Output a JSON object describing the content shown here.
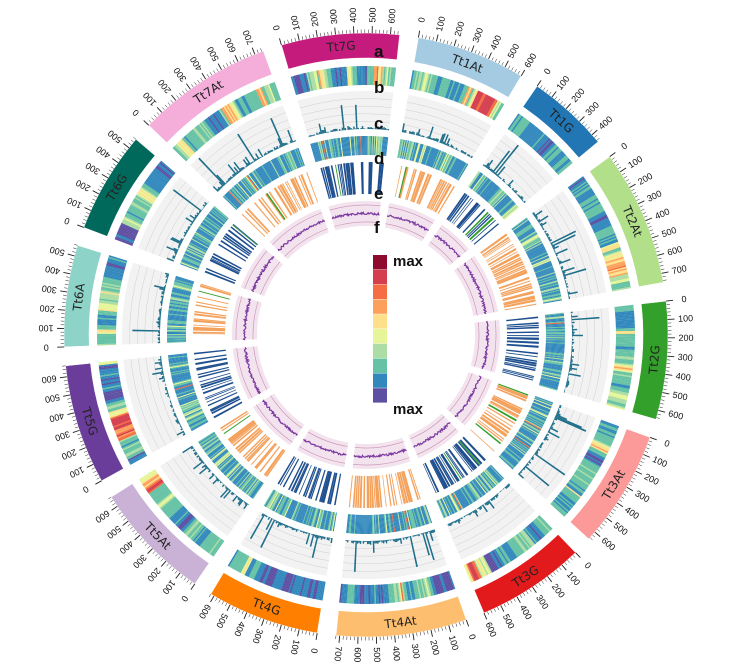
{
  "chart_data": {
    "type": "circos",
    "title": "",
    "start_angle_deg": 10,
    "gap_deg": 3.6,
    "chromosomes": [
      {
        "name": "Tt1At",
        "length": 600,
        "color": "#a5cbe3",
        "ticks": [
          0,
          100,
          200,
          300,
          400,
          500,
          600
        ]
      },
      {
        "name": "Tt1G",
        "length": 450,
        "color": "#2276b4",
        "ticks": [
          0,
          100,
          200,
          300,
          400
        ]
      },
      {
        "name": "Tt2At",
        "length": 750,
        "color": "#b2df8a",
        "ticks": [
          0,
          100,
          200,
          300,
          400,
          500,
          600,
          700
        ]
      },
      {
        "name": "Tt2G",
        "length": 650,
        "color": "#33a02c",
        "ticks": [
          0,
          100,
          200,
          300,
          400,
          500,
          600
        ]
      },
      {
        "name": "Tt3At",
        "length": 650,
        "color": "#fb9a99",
        "ticks": [
          0,
          100,
          200,
          300,
          400,
          500,
          600
        ]
      },
      {
        "name": "Tt3G",
        "length": 600,
        "color": "#e31a1c",
        "ticks": [
          0,
          100,
          200,
          300,
          400,
          500,
          600
        ]
      },
      {
        "name": "Tt4At",
        "length": 720,
        "color": "#fdbf6f",
        "ticks": [
          0,
          100,
          200,
          300,
          400,
          500,
          600,
          700
        ]
      },
      {
        "name": "Tt4G",
        "length": 620,
        "color": "#ff7f00",
        "ticks": [
          0,
          100,
          200,
          300,
          400,
          500,
          600
        ]
      },
      {
        "name": "Tt5At",
        "length": 660,
        "color": "#cab2d6",
        "ticks": [
          0,
          100,
          200,
          300,
          400,
          500,
          600
        ]
      },
      {
        "name": "Tt5G",
        "length": 660,
        "color": "#6a3d9a",
        "ticks": [
          0,
          100,
          200,
          300,
          400,
          500,
          600
        ]
      },
      {
        "name": "Tt6A",
        "length": 560,
        "color": "#8dd3c7",
        "ticks": [
          0,
          100,
          200,
          300,
          400,
          500
        ]
      },
      {
        "name": "Tt6G",
        "length": 560,
        "color": "#00695c",
        "ticks": [
          0,
          100,
          200,
          300,
          400,
          500
        ]
      },
      {
        "name": "Tt7At",
        "length": 750,
        "color": "#f4aed9",
        "ticks": [
          0,
          100,
          200,
          300,
          400,
          500,
          600,
          700
        ]
      },
      {
        "name": "Tt7G",
        "length": 650,
        "color": "#c51b7d",
        "ticks": [
          0,
          100,
          200,
          300,
          400,
          500,
          600
        ]
      }
    ],
    "tracks": [
      {
        "letter": "a",
        "description": "chromosomes"
      },
      {
        "letter": "b",
        "description": "heatmap"
      },
      {
        "letter": "c",
        "description": "histogram"
      },
      {
        "letter": "d",
        "description": "heatmap"
      },
      {
        "letter": "e",
        "description": "bands"
      },
      {
        "letter": "f",
        "description": "line"
      }
    ],
    "legend": {
      "top_label": "max",
      "bottom_label": "max",
      "colors": [
        "#8e0b2f",
        "#d43e4f",
        "#f46d43",
        "#fca05b",
        "#fee08b",
        "#e6f598",
        "#abdda4",
        "#66c2a5",
        "#3288bd",
        "#5e4fa2"
      ]
    },
    "palettes": {
      "heatmap": [
        "#5e4fa2",
        "#3288bd",
        "#3288bd",
        "#66c2a5",
        "#66c2a5",
        "#abdda4",
        "#e6f598",
        "#fee08b",
        "#fca05b",
        "#f46d43",
        "#d43e4f"
      ],
      "band_colors": [
        "#f4a15b",
        "#1e4f8f",
        "#33a02c"
      ],
      "hist_color": "#1f6f8b",
      "line_color": "#7b3aa0",
      "line_band_fill": "#f3e3ee",
      "line_band_stroke": "#c98fb1",
      "hist_bg": "#f2f2f2",
      "hist_grid": "#cfcfcf"
    }
  }
}
